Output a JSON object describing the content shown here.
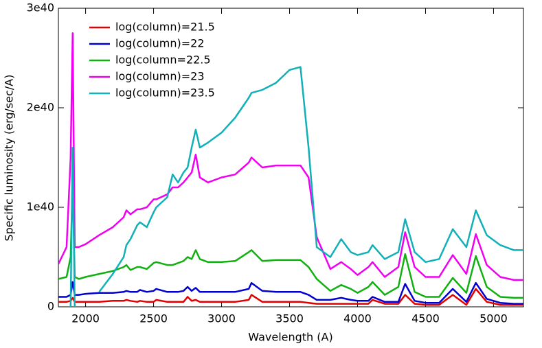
{
  "chart_data": {
    "type": "line",
    "xlabel": "Wavelength (A)",
    "ylabel": "Specific luminosity (erg/sec/A)",
    "xlim": [
      1800,
      5220
    ],
    "ylim": [
      0,
      3e+40
    ],
    "xticks": [
      2000,
      2500,
      3000,
      3500,
      4000,
      4500,
      5000
    ],
    "yticks": [
      0,
      {
        "value": 1e+40,
        "label": "1e40"
      },
      {
        "value": 2e+40,
        "label": "2e40"
      },
      {
        "value": 3e+40,
        "label": "3e40"
      }
    ],
    "legend": "upper-left",
    "x": [
      1800,
      1860,
      1890,
      1905,
      1920,
      1950,
      2000,
      2100,
      2200,
      2280,
      2300,
      2330,
      2380,
      2400,
      2450,
      2500,
      2520,
      2600,
      2640,
      2680,
      2720,
      2750,
      2780,
      2810,
      2840,
      2900,
      3000,
      3100,
      3200,
      3220,
      3300,
      3400,
      3500,
      3580,
      3640,
      3700,
      3800,
      3880,
      3950,
      4000,
      4080,
      4110,
      4200,
      4300,
      4350,
      4420,
      4500,
      4600,
      4700,
      4800,
      4870,
      4950,
      5050,
      5150,
      5220
    ],
    "series": [
      {
        "name": "log(column)=21.5",
        "color": "#e00000",
        "values": [
          5e+38,
          5e+38,
          6e+38,
          9e+38,
          5e+38,
          5e+38,
          5e+38,
          5e+38,
          6e+38,
          6e+38,
          7e+38,
          6e+38,
          5e+38,
          6e+38,
          5e+38,
          5e+38,
          7e+38,
          5e+38,
          5e+38,
          5e+38,
          5e+38,
          1e+39,
          6e+38,
          7e+38,
          5e+38,
          5e+38,
          5e+38,
          5e+38,
          7e+38,
          1.2e+39,
          5e+38,
          5e+38,
          5e+38,
          5e+38,
          4e+38,
          3e+38,
          3e+38,
          3e+38,
          3e+38,
          3e+38,
          3e+38,
          7e+38,
          3e+38,
          3e+38,
          1.2e+39,
          3e+38,
          2e+38,
          2e+38,
          1.2e+39,
          2e+38,
          1.8e+39,
          5e+38,
          2e+38,
          2e+38,
          2e+38
        ]
      },
      {
        "name": "log(column)=22",
        "color": "#0000d0",
        "values": [
          1e+39,
          1e+39,
          1.2e+39,
          2.5e+39,
          1.2e+39,
          1.2e+39,
          1.3e+39,
          1.4e+39,
          1.4e+39,
          1.5e+39,
          1.6e+39,
          1.5e+39,
          1.5e+39,
          1.7e+39,
          1.5e+39,
          1.6e+39,
          1.8e+39,
          1.5e+39,
          1.5e+39,
          1.5e+39,
          1.6e+39,
          2e+39,
          1.6e+39,
          1.9e+39,
          1.5e+39,
          1.5e+39,
          1.5e+39,
          1.5e+39,
          1.8e+39,
          2.4e+39,
          1.6e+39,
          1.5e+39,
          1.5e+39,
          1.5e+39,
          1.2e+39,
          7e+38,
          7e+38,
          9e+38,
          7e+38,
          6e+38,
          6e+38,
          1e+39,
          5e+38,
          5e+38,
          2.3e+39,
          6e+38,
          4e+38,
          4e+38,
          1.8e+39,
          5e+38,
          2.4e+39,
          8e+38,
          4e+38,
          3e+38,
          3e+38
        ]
      },
      {
        "name": "log(column=22.5",
        "color": "#10b010",
        "values": [
          2.8e+39,
          3e+39,
          5e+39,
          1.25e+40,
          3e+39,
          2.8e+39,
          3e+39,
          3.3e+39,
          3.6e+39,
          4e+39,
          4.2e+39,
          3.7e+39,
          4e+39,
          4e+39,
          3.8e+39,
          4.4e+39,
          4.5e+39,
          4.2e+39,
          4.2e+39,
          4.4e+39,
          4.6e+39,
          5e+39,
          4.8e+39,
          5.7e+39,
          4.8e+39,
          4.5e+39,
          4.5e+39,
          4.6e+39,
          5.5e+39,
          5.7e+39,
          4.6e+39,
          4.7e+39,
          4.7e+39,
          4.7e+39,
          4e+39,
          2.8e+39,
          1.6e+39,
          2.2e+39,
          1.8e+39,
          1.4e+39,
          2e+39,
          2.5e+39,
          1.2e+39,
          2e+39,
          5.3e+39,
          1.5e+39,
          1e+39,
          1e+39,
          2.9e+39,
          1.4e+39,
          5.1e+39,
          2e+39,
          1e+39,
          9e+38,
          9e+38
        ]
      },
      {
        "name": "log(column)=23",
        "color": "#f000f0",
        "values": [
          4.3e+39,
          6e+39,
          1.5e+40,
          2.75e+40,
          6e+39,
          6e+39,
          6.3e+39,
          7.2e+39,
          8e+39,
          9e+39,
          9.7e+39,
          9.3e+39,
          9.8e+39,
          9.8e+39,
          1e+40,
          1.08e+40,
          1.08e+40,
          1.13e+40,
          1.2e+40,
          1.2e+40,
          1.25e+40,
          1.3e+40,
          1.35e+40,
          1.53e+40,
          1.3e+40,
          1.25e+40,
          1.3e+40,
          1.33e+40,
          1.45e+40,
          1.5e+40,
          1.4e+40,
          1.42e+40,
          1.42e+40,
          1.42e+40,
          1.3e+40,
          7e+39,
          3.8e+39,
          4.5e+39,
          3.8e+39,
          3.2e+39,
          4e+39,
          4.5e+39,
          3e+39,
          4e+39,
          7.5e+39,
          4e+39,
          3e+39,
          3e+39,
          5.2e+39,
          3.3e+39,
          7.3e+39,
          4.2e+39,
          3e+39,
          2.7e+39,
          2.7e+39
        ]
      },
      {
        "name": "log(column)=23.5",
        "color": "#10b0b8",
        "values": [
          null,
          null,
          0,
          1.6e+40,
          0,
          null,
          null,
          1.5e+39,
          3.3e+39,
          5e+39,
          6.2e+39,
          6.8e+39,
          8.2e+39,
          8.5e+39,
          8e+39,
          9.5e+39,
          1e+40,
          1.1e+40,
          1.33e+40,
          1.25e+40,
          1.35e+40,
          1.4e+40,
          1.6e+40,
          1.78e+40,
          1.6e+40,
          1.65e+40,
          1.75e+40,
          1.9e+40,
          2.1e+40,
          2.15e+40,
          2.18e+40,
          2.25e+40,
          2.38e+40,
          2.41e+40,
          1.6e+40,
          6e+39,
          5e+39,
          6.8e+39,
          5.5e+39,
          5.2e+39,
          5.5e+39,
          6.2e+39,
          4.8e+39,
          5.5e+39,
          8.8e+39,
          5.5e+39,
          4.5e+39,
          4.8e+39,
          7.8e+39,
          6e+39,
          9.7e+39,
          7.2e+39,
          6.2e+39,
          5.7e+39,
          5.7e+39
        ]
      }
    ]
  }
}
